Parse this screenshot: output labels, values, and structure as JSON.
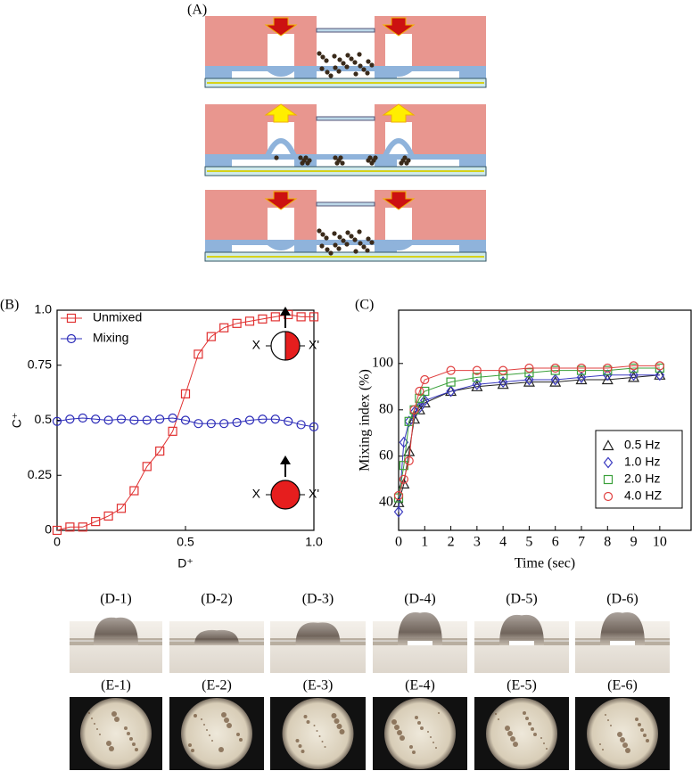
{
  "panels": {
    "a": "(A)",
    "b": "(B)",
    "c": "(C)"
  },
  "chart_data": [
    {
      "type": "line",
      "xlabel": "D⁺",
      "ylabel": "C⁺",
      "x": [
        0,
        0.05,
        0.1,
        0.15,
        0.2,
        0.25,
        0.3,
        0.35,
        0.4,
        0.45,
        0.5,
        0.55,
        0.6,
        0.65,
        0.7,
        0.75,
        0.8,
        0.85,
        0.9,
        0.95,
        1
      ],
      "series": [
        {
          "name": "Unmixed",
          "color": "#e03030",
          "marker": "square",
          "values": [
            0,
            0.015,
            0.015,
            0.04,
            0.065,
            0.1,
            0.18,
            0.29,
            0.36,
            0.45,
            0.62,
            0.8,
            0.88,
            0.92,
            0.94,
            0.95,
            0.96,
            0.97,
            0.98,
            0.97,
            0.97
          ]
        },
        {
          "name": "Mixing",
          "color": "#2b2bb8",
          "marker": "circle",
          "values": [
            0.495,
            0.505,
            0.51,
            0.505,
            0.5,
            0.505,
            0.5,
            0.5,
            0.505,
            0.51,
            0.5,
            0.485,
            0.485,
            0.485,
            0.49,
            0.5,
            0.505,
            0.505,
            0.495,
            0.48,
            0.47
          ]
        }
      ],
      "xlim": [
        0,
        1
      ],
      "xticks": [
        0,
        0.5,
        {
          "value": 1,
          "label": "1.0"
        }
      ],
      "ylim": [
        0,
        1
      ],
      "yticks": [
        0,
        0.25,
        0.5,
        0.75,
        {
          "value": 1,
          "label": "1.0"
        }
      ],
      "legend": "upper-left",
      "annotations": [
        "X",
        "X'",
        "X",
        "X'"
      ]
    },
    {
      "type": "line",
      "xlabel": "Time (sec)",
      "ylabel": "Mixing index (%)",
      "x": [
        0,
        0.2,
        0.4,
        0.6,
        0.8,
        1,
        2,
        3,
        4,
        5,
        6,
        7,
        8,
        9,
        10
      ],
      "series": [
        {
          "name": "0.5 Hz",
          "color": "#222222",
          "marker": "triangle",
          "values": [
            40,
            48,
            62,
            76,
            80,
            83,
            88,
            90,
            91,
            92,
            92,
            93,
            93,
            94,
            95
          ]
        },
        {
          "name": "1.0 Hz",
          "color": "#3a3ac0",
          "marker": "diamond",
          "values": [
            36,
            66,
            75,
            79,
            81,
            84,
            88,
            91,
            92,
            93,
            93,
            94,
            95,
            95,
            95
          ]
        },
        {
          "name": "2.0 Hz",
          "color": "#3aa03a",
          "marker": "square",
          "values": [
            42,
            56,
            75,
            80,
            85,
            88,
            92,
            94,
            95,
            96,
            97,
            97,
            97,
            98,
            98
          ]
        },
        {
          "name": "4.0 HZ",
          "color": "#e04040",
          "marker": "circle",
          "values": [
            43,
            50,
            58,
            80,
            88,
            93,
            97,
            97,
            97,
            98,
            98,
            98,
            98,
            99,
            99
          ]
        }
      ],
      "xlim": [
        0,
        11.2
      ],
      "xticks": [
        0,
        1,
        2,
        3,
        4,
        5,
        6,
        7,
        8,
        9,
        10
      ],
      "ylim": [
        28,
        123
      ],
      "yticks": [
        40,
        60,
        80,
        100
      ],
      "legend": "lower-right"
    }
  ],
  "photos": {
    "d_labels": [
      "(D-1)",
      "(D-2)",
      "(D-3)",
      "(D-4)",
      "(D-5)",
      "(D-6)"
    ],
    "e_labels": [
      "(E-1)",
      "(E-2)",
      "(E-3)",
      "(E-4)",
      "(E-5)",
      "(E-6)"
    ]
  }
}
